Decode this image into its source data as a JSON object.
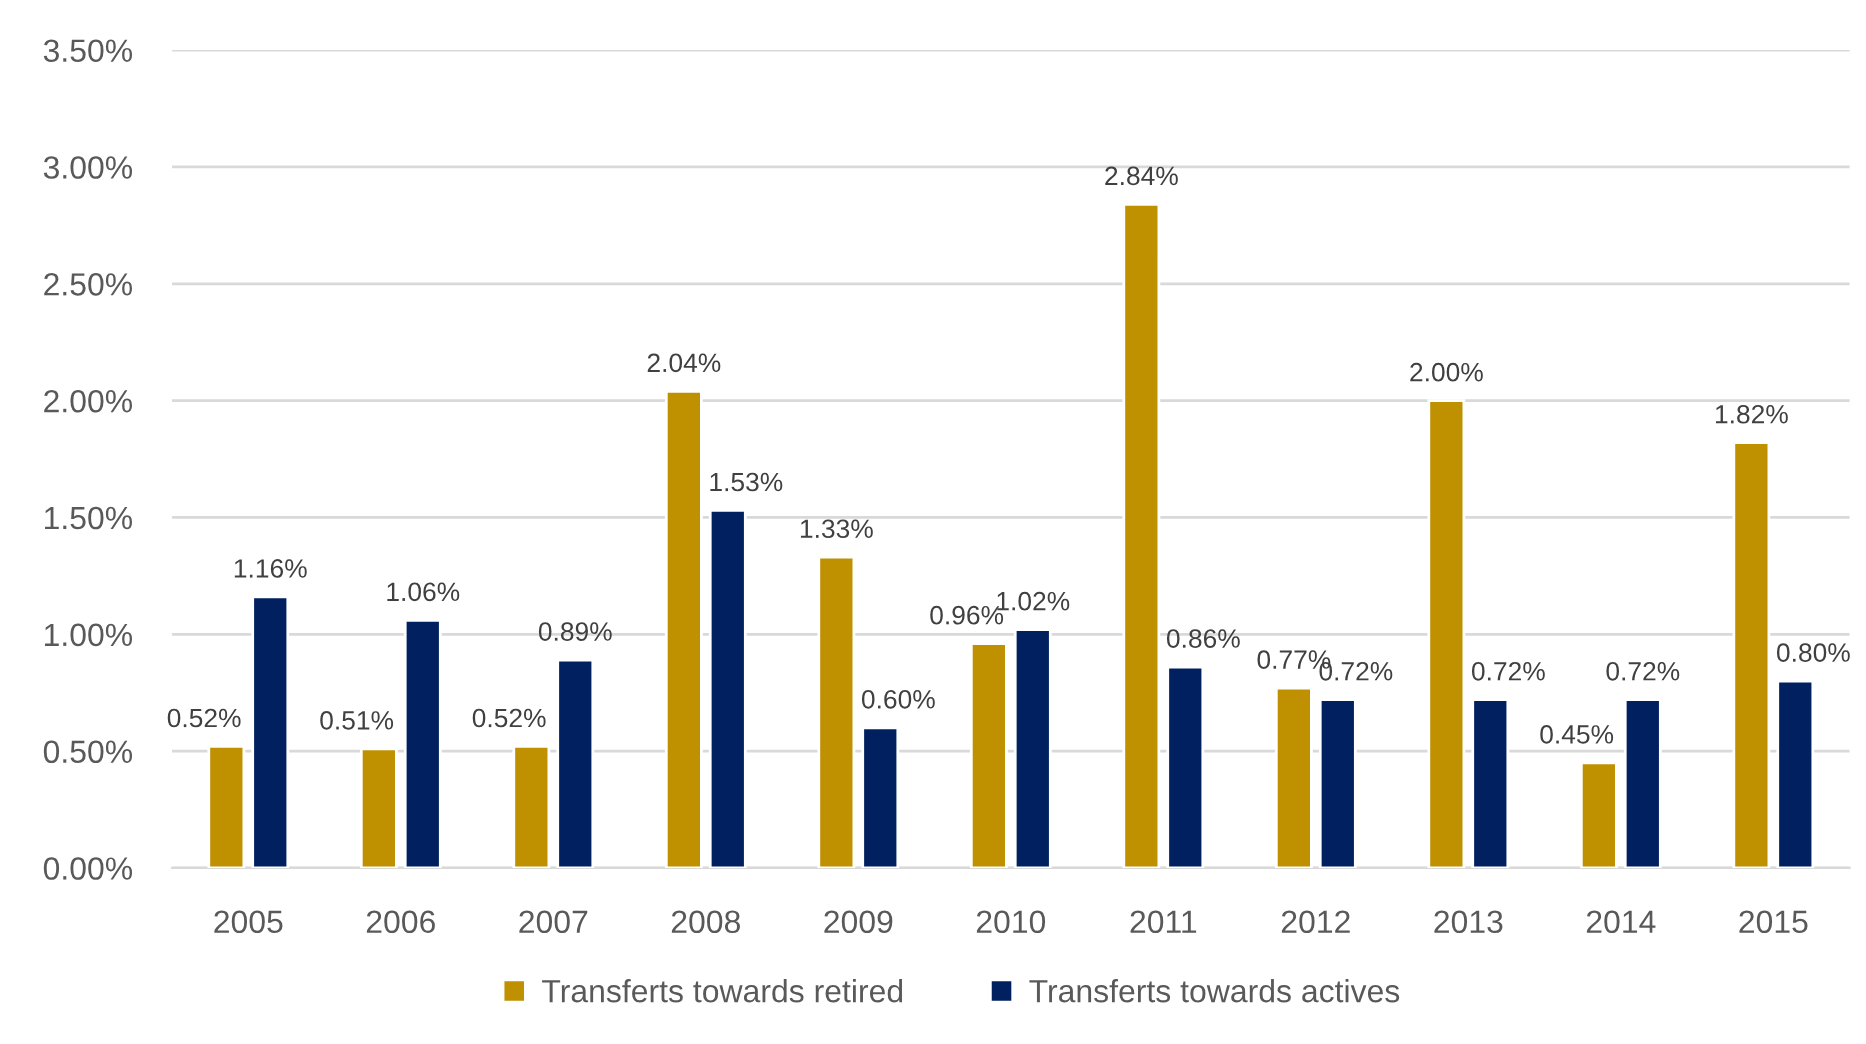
{
  "chart_data": {
    "type": "bar",
    "categories": [
      "2005",
      "2006",
      "2007",
      "2008",
      "2009",
      "2010",
      "2011",
      "2012",
      "2013",
      "2014",
      "2015"
    ],
    "series": [
      {
        "name": "Transferts towards retired",
        "color": "#bf9000",
        "values": [
          0.52,
          0.51,
          0.52,
          2.04,
          1.33,
          0.96,
          2.84,
          0.77,
          2.0,
          0.45,
          1.82
        ],
        "value_labels": [
          "0.52%",
          "0.51%",
          "0.52%",
          "2.04%",
          "1.33%",
          "0.96%",
          "2.84%",
          "0.77%",
          "2.00%",
          "0.45%",
          "1.82%"
        ]
      },
      {
        "name": "Transferts towards actives",
        "color": "#002060",
        "values": [
          1.16,
          1.06,
          0.89,
          1.53,
          0.6,
          1.02,
          0.86,
          0.72,
          0.72,
          0.72,
          0.8
        ],
        "value_labels": [
          "1.16%",
          "1.06%",
          "0.89%",
          "1.53%",
          "0.60%",
          "1.02%",
          "0.86%",
          "0.72%",
          "0.72%",
          "0.72%",
          "0.80%"
        ]
      }
    ],
    "ylim": [
      0,
      3.5
    ],
    "yticks": [
      {
        "value": 0,
        "label": "0.00%"
      },
      {
        "value": 0.5,
        "label": "0.50%"
      },
      {
        "value": 1.0,
        "label": "1.00%"
      },
      {
        "value": 1.5,
        "label": "1.50%"
      },
      {
        "value": 2.0,
        "label": "2.00%"
      },
      {
        "value": 2.5,
        "label": "2.50%"
      },
      {
        "value": 3.0,
        "label": "3.00%"
      },
      {
        "value": 3.5,
        "label": "3.50%"
      }
    ],
    "grid": "y",
    "legend": "bottom"
  }
}
